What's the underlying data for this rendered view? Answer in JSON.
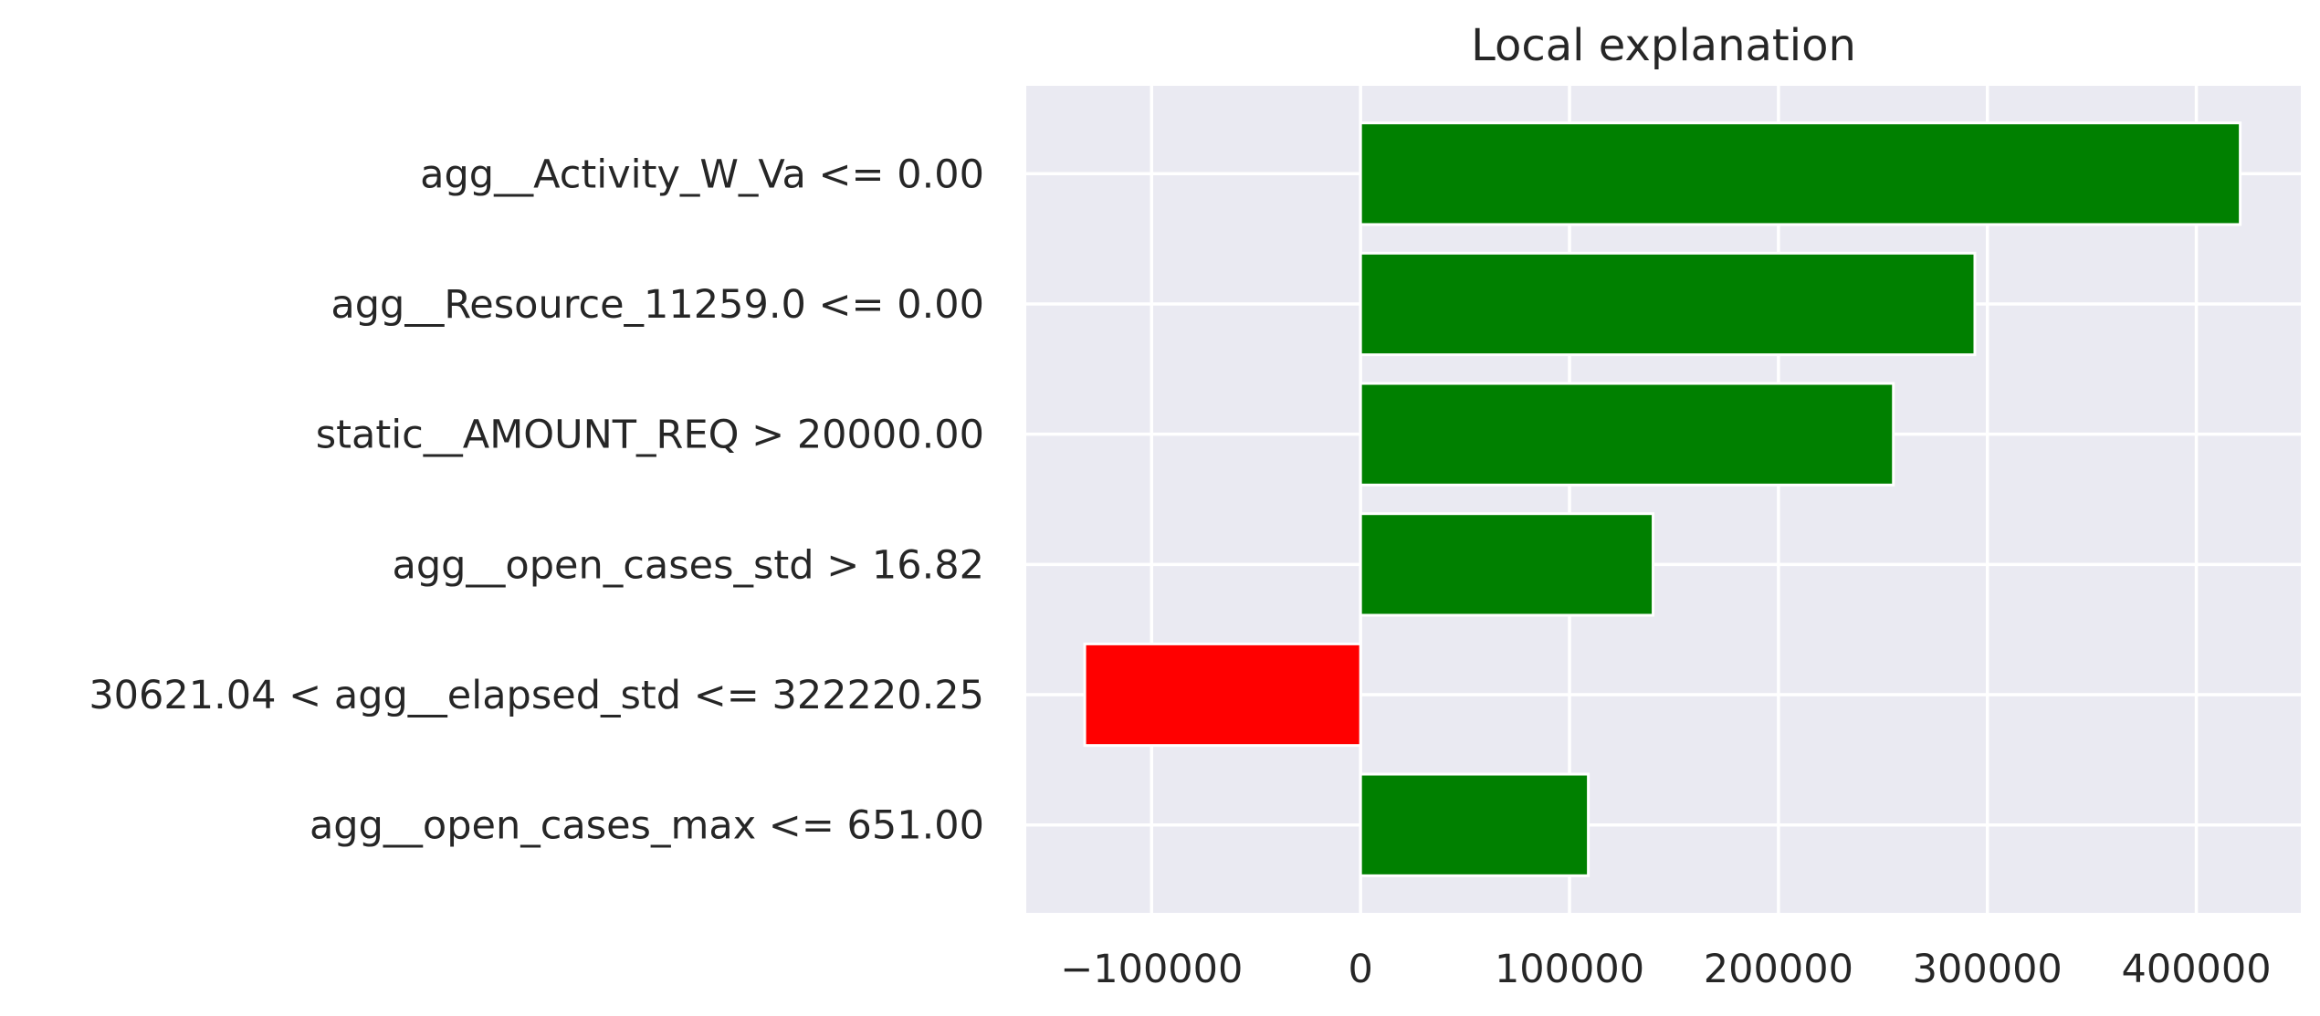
{
  "chart_data": {
    "type": "bar",
    "orientation": "horizontal",
    "title": "Local explanation",
    "xlabel": "",
    "ylabel": "",
    "categories": [
      "agg__Activity_W_Va <= 0.00",
      "agg__Resource_11259.0 <= 0.00",
      "static__AMOUNT_REQ > 20000.00",
      "agg__open_cases_std > 16.82",
      "30621.04 < agg__elapsed_std <= 322220.25",
      "agg__open_cases_max <= 651.00"
    ],
    "values": [
      421000,
      294000,
      255000,
      140000,
      -132000,
      109000
    ],
    "xlim": [
      -160000,
      450000
    ],
    "xticks": [
      -100000,
      0,
      100000,
      200000,
      300000,
      400000
    ],
    "xtick_labels": [
      "−100000",
      "0",
      "100000",
      "200000",
      "300000",
      "400000"
    ],
    "grid": true,
    "colors": {
      "positive": "#008000",
      "negative": "#ff0000",
      "background": "#eaeaf2",
      "grid": "#ffffff",
      "text": "#262626"
    }
  }
}
